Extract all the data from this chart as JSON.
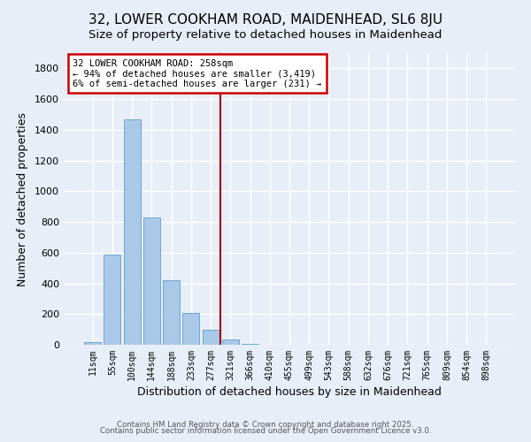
{
  "title": "32, LOWER COOKHAM ROAD, MAIDENHEAD, SL6 8JU",
  "subtitle": "Size of property relative to detached houses in Maidenhead",
  "xlabel": "Distribution of detached houses by size in Maidenhead",
  "ylabel": "Number of detached properties",
  "bar_labels": [
    "11sqm",
    "55sqm",
    "100sqm",
    "144sqm",
    "188sqm",
    "233sqm",
    "277sqm",
    "321sqm",
    "366sqm",
    "410sqm",
    "455sqm",
    "499sqm",
    "543sqm",
    "588sqm",
    "632sqm",
    "676sqm",
    "721sqm",
    "765sqm",
    "809sqm",
    "854sqm",
    "898sqm"
  ],
  "bar_values": [
    15,
    585,
    1470,
    830,
    420,
    205,
    100,
    35,
    5,
    0,
    0,
    0,
    0,
    0,
    0,
    0,
    0,
    0,
    0,
    0,
    0
  ],
  "bar_color": "#aac8e8",
  "bar_edge_color": "#6aaad4",
  "vline_x_index": 6.5,
  "vline_color": "#990000",
  "annotation_text": "32 LOWER COOKHAM ROAD: 258sqm\n← 94% of detached houses are smaller (3,419)\n6% of semi-detached houses are larger (231) →",
  "annotation_box_facecolor": "white",
  "annotation_box_edgecolor": "#cc0000",
  "ylim": [
    0,
    1900
  ],
  "yticks": [
    0,
    200,
    400,
    600,
    800,
    1000,
    1200,
    1400,
    1600,
    1800
  ],
  "bg_color": "#e8eef8",
  "grid_color": "white",
  "footer_line1": "Contains HM Land Registry data © Crown copyright and database right 2025.",
  "footer_line2": "Contains public sector information licensed under the Open Government Licence v3.0.",
  "title_fontsize": 11,
  "subtitle_fontsize": 9.5,
  "figsize": [
    6.0,
    5.0
  ],
  "dpi": 100
}
